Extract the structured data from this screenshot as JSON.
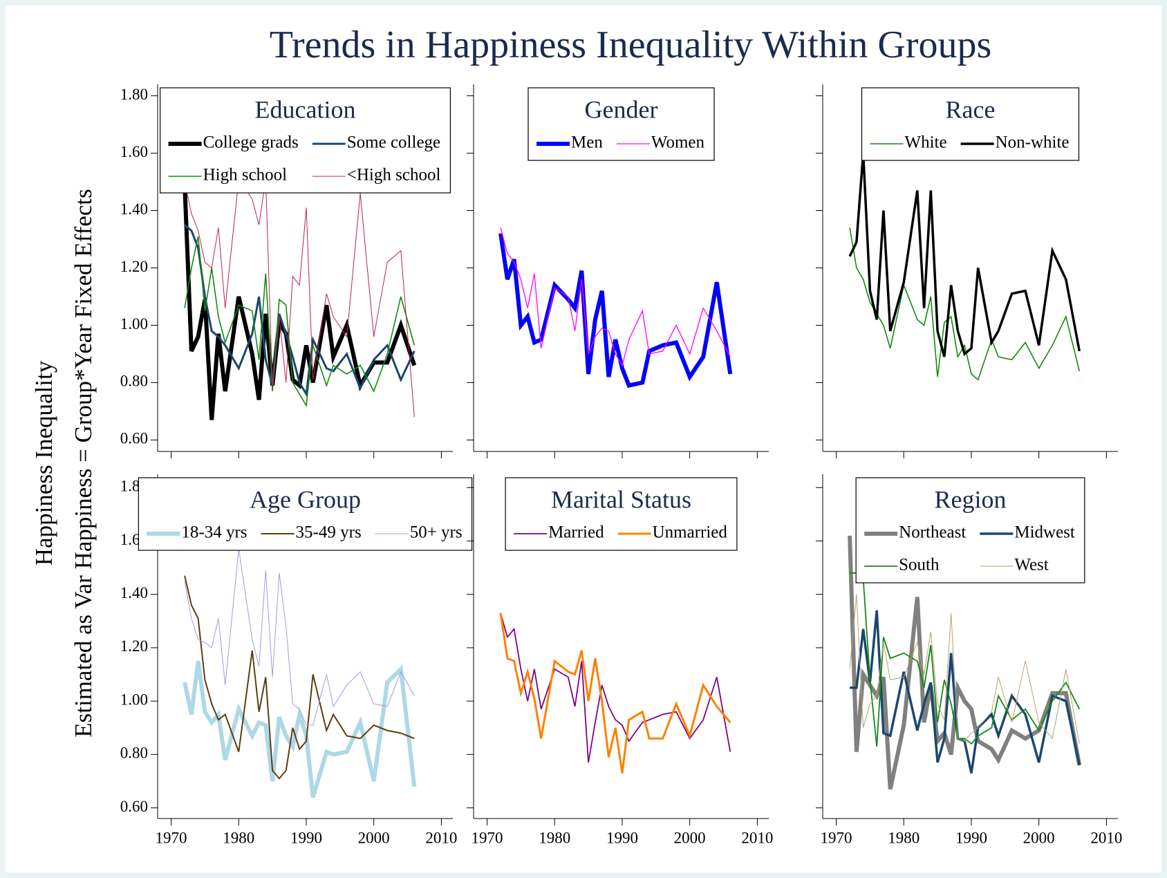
{
  "title": "Trends in Happiness Inequality Within Groups",
  "ylabel": [
    "Happiness Inequality",
    "Estimated as Var Happiness = Group*Year Fixed Effects"
  ],
  "chart_data": [
    {
      "type": "line",
      "title": "Education",
      "legend_columns": 2,
      "x": [
        1972,
        1973,
        1974,
        1975,
        1976,
        1977,
        1978,
        1980,
        1982,
        1983,
        1984,
        1985,
        1986,
        1987,
        1988,
        1989,
        1990,
        1991,
        1993,
        1994,
        1996,
        1998,
        2000,
        2002,
        2004,
        2006
      ],
      "xlim": [
        1968,
        2011.7
      ],
      "xticks": [
        1970,
        1980,
        1990,
        2000,
        2010
      ],
      "ylim": [
        0.56,
        1.84
      ],
      "yticks": [
        {
          "value": 0.6,
          "label": "0.60"
        },
        {
          "value": 0.8,
          "label": "0.80"
        },
        {
          "value": 1.0,
          "label": "1.00"
        },
        {
          "value": 1.2,
          "label": "1.20"
        },
        {
          "value": 1.4,
          "label": "1.40"
        },
        {
          "value": 1.6,
          "label": "1.60"
        },
        {
          "value": 1.8,
          "label": "1.80"
        }
      ],
      "series": [
        {
          "name": "College grads",
          "color": "#000000",
          "line_width": 6,
          "values": [
            1.49,
            0.91,
            0.96,
            1.09,
            0.67,
            0.97,
            0.77,
            1.1,
            0.9,
            0.74,
            1.04,
            0.79,
            1.01,
            0.97,
            0.81,
            0.79,
            0.93,
            0.8,
            1.07,
            0.89,
            1.0,
            0.79,
            0.87,
            0.87,
            1.0,
            0.86
          ]
        },
        {
          "name": "Some college",
          "color": "#1a476f",
          "line_width": 3,
          "values": [
            1.35,
            1.33,
            1.27,
            1.1,
            0.98,
            0.96,
            0.93,
            0.85,
            0.97,
            1.1,
            0.88,
            0.79,
            1.04,
            0.97,
            0.89,
            0.8,
            0.76,
            0.95,
            0.85,
            0.84,
            0.9,
            0.78,
            0.88,
            0.93,
            0.81,
            0.91
          ]
        },
        {
          "name": "High school",
          "color": "#118a11",
          "line_width": 1.6,
          "values": [
            1.06,
            1.2,
            1.31,
            1.05,
            1.2,
            1.03,
            0.94,
            1.07,
            1.05,
            0.88,
            1.18,
            0.77,
            1.09,
            1.07,
            0.8,
            0.76,
            0.72,
            0.93,
            0.79,
            0.86,
            0.83,
            0.86,
            0.77,
            0.9,
            1.1,
            0.93
          ]
        },
        {
          "name": "<High school",
          "color": "#c0204f",
          "line_width": 1,
          "values": [
            1.5,
            1.39,
            1.33,
            1.22,
            1.2,
            1.34,
            1.06,
            1.51,
            1.44,
            1.35,
            1.51,
            0.78,
            1.03,
            0.8,
            1.17,
            1.14,
            1.41,
            0.81,
            1.11,
            1.03,
            0.96,
            1.46,
            0.96,
            1.22,
            1.26,
            0.68
          ]
        }
      ]
    },
    {
      "type": "line",
      "title": "Gender",
      "legend_columns": 2,
      "x": [
        1972,
        1973,
        1974,
        1975,
        1976,
        1977,
        1978,
        1980,
        1982,
        1983,
        1984,
        1985,
        1986,
        1987,
        1988,
        1989,
        1990,
        1991,
        1993,
        1994,
        1996,
        1998,
        2000,
        2002,
        2004,
        2006
      ],
      "xlim": [
        1968,
        2011.7
      ],
      "xticks": [
        1970,
        1980,
        1990,
        2000,
        2010
      ],
      "ylim": [
        0.56,
        1.84
      ],
      "yticks": [
        {
          "value": 0.6,
          "label": "0.60"
        },
        {
          "value": 0.8,
          "label": "0.80"
        },
        {
          "value": 1.0,
          "label": "1.00"
        },
        {
          "value": 1.2,
          "label": "1.20"
        },
        {
          "value": 1.4,
          "label": "1.40"
        },
        {
          "value": 1.6,
          "label": "1.60"
        },
        {
          "value": 1.8,
          "label": "1.80"
        }
      ],
      "series": [
        {
          "name": "Men",
          "color": "#0000ff",
          "line_width": 6,
          "values": [
            1.32,
            1.16,
            1.23,
            1.0,
            1.03,
            0.94,
            0.95,
            1.14,
            1.09,
            1.06,
            1.19,
            0.83,
            1.02,
            1.12,
            0.82,
            0.95,
            0.85,
            0.79,
            0.8,
            0.91,
            0.93,
            0.94,
            0.82,
            0.89,
            1.15,
            0.83
          ]
        },
        {
          "name": "Women",
          "color": "#ff00ff",
          "line_width": 1.3,
          "values": [
            1.34,
            1.25,
            1.22,
            1.16,
            1.06,
            1.18,
            0.92,
            1.13,
            1.1,
            0.98,
            1.16,
            0.9,
            0.96,
            0.99,
            0.98,
            0.9,
            0.86,
            0.95,
            1.05,
            0.9,
            0.91,
            1.0,
            0.9,
            1.06,
            0.98,
            0.89
          ]
        }
      ]
    },
    {
      "type": "line",
      "title": "Race",
      "legend_columns": 2,
      "x": [
        1972,
        1973,
        1974,
        1975,
        1976,
        1977,
        1978,
        1980,
        1982,
        1983,
        1984,
        1985,
        1986,
        1987,
        1988,
        1989,
        1990,
        1991,
        1993,
        1994,
        1996,
        1998,
        2000,
        2002,
        2004,
        2006
      ],
      "xlim": [
        1968,
        2011.7
      ],
      "xticks": [
        1970,
        1980,
        1990,
        2000,
        2010
      ],
      "ylim": [
        0.56,
        1.84
      ],
      "yticks": [
        {
          "value": 0.6,
          "label": "0.60"
        },
        {
          "value": 0.8,
          "label": "0.80"
        },
        {
          "value": 1.0,
          "label": "1.00"
        },
        {
          "value": 1.2,
          "label": "1.20"
        },
        {
          "value": 1.4,
          "label": "1.40"
        },
        {
          "value": 1.6,
          "label": "1.60"
        },
        {
          "value": 1.8,
          "label": "1.80"
        }
      ],
      "series": [
        {
          "name": "White",
          "color": "#118a11",
          "line_width": 1.6,
          "values": [
            1.34,
            1.2,
            1.16,
            1.08,
            1.04,
            1.0,
            0.92,
            1.14,
            1.02,
            1.0,
            1.1,
            0.82,
            1.01,
            1.03,
            0.89,
            0.93,
            0.83,
            0.81,
            0.95,
            0.89,
            0.88,
            0.94,
            0.85,
            0.93,
            1.03,
            0.84
          ]
        },
        {
          "name": "Non-white",
          "color": "#000000",
          "line_width": 3.5,
          "values": [
            1.24,
            1.29,
            1.6,
            1.12,
            1.02,
            1.4,
            0.98,
            1.15,
            1.47,
            1.06,
            1.47,
            0.98,
            0.89,
            1.14,
            0.98,
            0.9,
            0.92,
            1.2,
            0.94,
            0.98,
            1.11,
            1.12,
            0.93,
            1.26,
            1.16,
            0.91
          ]
        }
      ]
    },
    {
      "type": "line",
      "title": "Age Group",
      "legend_columns": 3,
      "x": [
        1972,
        1973,
        1974,
        1975,
        1976,
        1977,
        1978,
        1980,
        1982,
        1983,
        1984,
        1985,
        1986,
        1987,
        1988,
        1989,
        1990,
        1991,
        1993,
        1994,
        1996,
        1998,
        2000,
        2002,
        2004,
        2006
      ],
      "xlim": [
        1968,
        2011.7
      ],
      "xticks": [
        1970,
        1980,
        1990,
        2000,
        2010
      ],
      "ylim": [
        0.56,
        1.85
      ],
      "yticks": [
        {
          "value": 0.6,
          "label": "0.60"
        },
        {
          "value": 0.8,
          "label": "0.80"
        },
        {
          "value": 1.0,
          "label": "1.00"
        },
        {
          "value": 1.2,
          "label": "1.20"
        },
        {
          "value": 1.4,
          "label": "1.40"
        },
        {
          "value": 1.6,
          "label": "1.60"
        },
        {
          "value": 1.8,
          "label": "1.80"
        }
      ],
      "series": [
        {
          "name": "18-34 yrs",
          "color": "#add8e6",
          "line_width": 6,
          "values": [
            1.07,
            0.95,
            1.15,
            0.96,
            0.92,
            0.95,
            0.78,
            0.97,
            0.87,
            0.92,
            0.91,
            0.7,
            0.94,
            0.87,
            0.83,
            0.95,
            0.87,
            0.64,
            0.81,
            0.8,
            0.81,
            0.92,
            0.7,
            1.07,
            1.12,
            0.68
          ]
        },
        {
          "name": "35-49 yrs",
          "color": "#5c3d10",
          "line_width": 2,
          "values": [
            1.47,
            1.36,
            1.31,
            1.08,
            0.99,
            0.93,
            0.95,
            0.81,
            1.19,
            0.96,
            1.09,
            0.74,
            0.71,
            0.74,
            0.9,
            0.82,
            0.85,
            1.1,
            0.89,
            0.95,
            0.87,
            0.86,
            0.91,
            0.89,
            0.88,
            0.86
          ]
        },
        {
          "name": "50+ yrs",
          "color": "#9c9ce0",
          "line_width": 1,
          "values": [
            1.45,
            1.31,
            1.23,
            1.22,
            1.2,
            1.31,
            1.06,
            1.57,
            1.23,
            1.13,
            1.49,
            1.09,
            1.48,
            1.28,
            0.99,
            0.97,
            0.91,
            0.91,
            1.1,
            0.98,
            1.06,
            1.11,
            0.99,
            0.98,
            1.11,
            1.02
          ]
        }
      ]
    },
    {
      "type": "line",
      "title": "Marital Status",
      "legend_columns": 2,
      "x": [
        1972,
        1973,
        1974,
        1975,
        1976,
        1977,
        1978,
        1980,
        1982,
        1983,
        1984,
        1985,
        1986,
        1987,
        1988,
        1989,
        1990,
        1991,
        1993,
        1994,
        1996,
        1998,
        2000,
        2002,
        2004,
        2006
      ],
      "xlim": [
        1968,
        2011.7
      ],
      "xticks": [
        1970,
        1980,
        1990,
        2000,
        2010
      ],
      "ylim": [
        0.56,
        1.85
      ],
      "yticks": [
        {
          "value": 0.6,
          "label": "0.60"
        },
        {
          "value": 0.8,
          "label": "0.80"
        },
        {
          "value": 1.0,
          "label": "1.00"
        },
        {
          "value": 1.2,
          "label": "1.20"
        },
        {
          "value": 1.4,
          "label": "1.40"
        },
        {
          "value": 1.6,
          "label": "1.60"
        },
        {
          "value": 1.8,
          "label": "1.80"
        }
      ],
      "series": [
        {
          "name": "Married",
          "color": "#800080",
          "line_width": 1.8,
          "values": [
            1.33,
            1.24,
            1.27,
            1.12,
            1.0,
            1.12,
            0.97,
            1.12,
            1.09,
            0.98,
            1.15,
            0.77,
            0.92,
            1.06,
            0.98,
            0.93,
            0.91,
            0.85,
            0.92,
            0.93,
            0.95,
            0.96,
            0.86,
            0.93,
            1.09,
            0.81
          ]
        },
        {
          "name": "Unmarried",
          "color": "#ff8000",
          "line_width": 3,
          "values": [
            1.33,
            1.16,
            1.15,
            1.03,
            1.11,
            1.01,
            0.86,
            1.15,
            1.11,
            1.1,
            1.19,
            1.0,
            1.16,
            1.0,
            0.79,
            0.9,
            0.73,
            0.93,
            0.96,
            0.86,
            0.86,
            0.99,
            0.87,
            1.06,
            0.98,
            0.92
          ]
        }
      ]
    },
    {
      "type": "line",
      "title": "Region",
      "legend_columns": 2,
      "x": [
        1972,
        1973,
        1974,
        1975,
        1976,
        1977,
        1978,
        1980,
        1982,
        1983,
        1984,
        1985,
        1986,
        1987,
        1988,
        1989,
        1990,
        1991,
        1993,
        1994,
        1996,
        1998,
        2000,
        2002,
        2004,
        2006
      ],
      "xlim": [
        1968,
        2011.7
      ],
      "xticks": [
        1970,
        1980,
        1990,
        2000,
        2010
      ],
      "ylim": [
        0.56,
        1.85
      ],
      "yticks": [
        {
          "value": 0.6,
          "label": "0.60"
        },
        {
          "value": 0.8,
          "label": "0.80"
        },
        {
          "value": 1.0,
          "label": "1.00"
        },
        {
          "value": 1.2,
          "label": "1.20"
        },
        {
          "value": 1.4,
          "label": "1.40"
        },
        {
          "value": 1.6,
          "label": "1.60"
        },
        {
          "value": 1.8,
          "label": "1.80"
        }
      ],
      "series": [
        {
          "name": "Northeast",
          "color": "#808080",
          "line_width": 6,
          "values": [
            1.62,
            0.81,
            1.1,
            1.06,
            1.02,
            1.09,
            0.67,
            0.91,
            1.39,
            0.92,
            1.06,
            0.85,
            0.88,
            0.8,
            1.05,
            1.0,
            0.97,
            0.85,
            0.82,
            0.78,
            0.89,
            0.86,
            0.89,
            1.03,
            1.03,
            0.76
          ]
        },
        {
          "name": "Midwest",
          "color": "#1a476f",
          "line_width": 3.5,
          "values": [
            1.05,
            1.05,
            1.27,
            1.07,
            1.34,
            0.88,
            0.87,
            1.11,
            0.89,
            0.99,
            1.07,
            0.77,
            0.86,
            1.18,
            0.86,
            0.85,
            0.73,
            0.9,
            0.95,
            0.87,
            1.02,
            0.95,
            0.77,
            1.02,
            1.0,
            0.76
          ]
        },
        {
          "name": "South",
          "color": "#118a11",
          "line_width": 1.8,
          "values": [
            1.48,
            1.48,
            1.46,
            1.08,
            0.83,
            1.24,
            1.16,
            1.18,
            1.15,
            1.05,
            1.21,
            0.92,
            1.08,
            0.99,
            0.86,
            0.86,
            0.84,
            0.87,
            0.9,
            1.02,
            0.93,
            0.97,
            0.89,
            1.0,
            1.07,
            0.97
          ]
        },
        {
          "name": "West",
          "color": "#b8a070",
          "line_width": 1,
          "values": [
            1.12,
            1.4,
            0.9,
            0.99,
            1.02,
            1.22,
            1.08,
            1.09,
            1.22,
            1.1,
            1.26,
            0.99,
            0.93,
            1.33,
            0.86,
            0.85,
            0.88,
            0.9,
            0.96,
            1.09,
            0.92,
            1.15,
            0.92,
            0.86,
            1.12,
            0.84
          ]
        }
      ]
    }
  ]
}
